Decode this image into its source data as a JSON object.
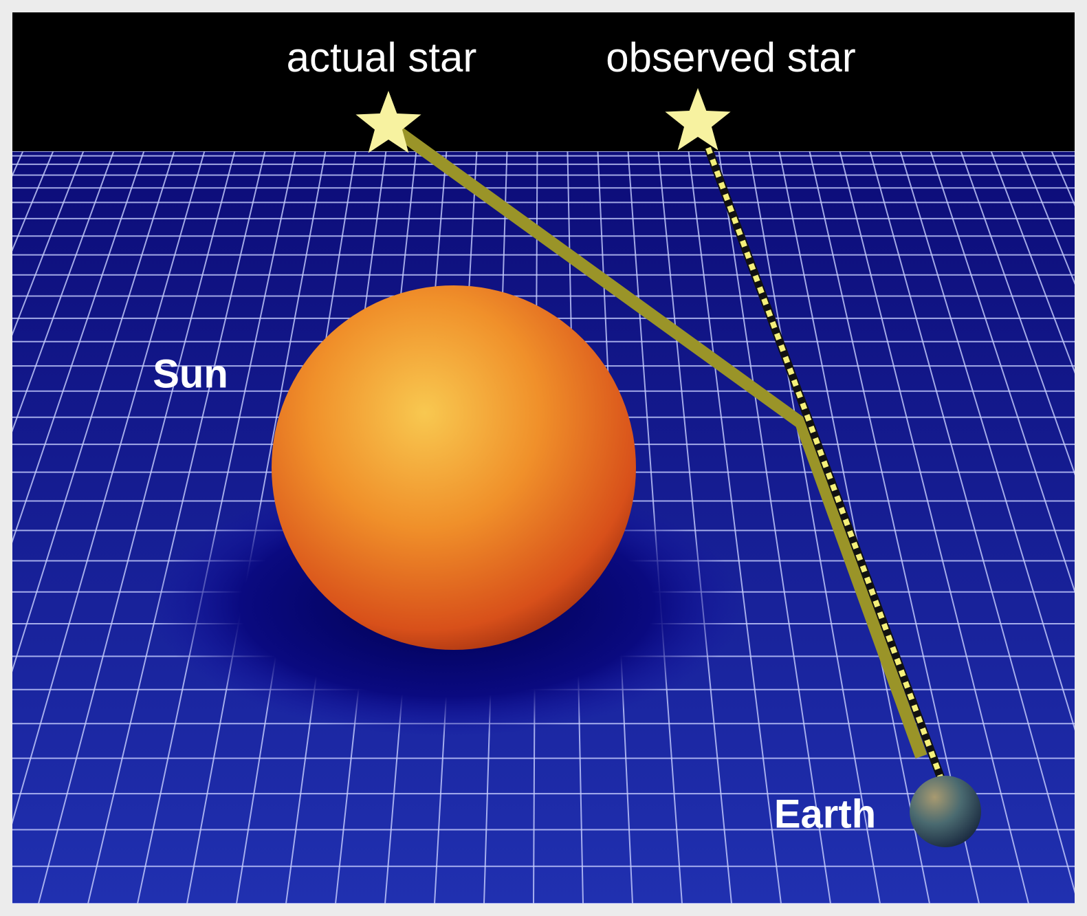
{
  "labels": {
    "actual_star": "actual star",
    "observed_star": "observed star",
    "sun": "Sun",
    "earth": "Earth"
  }
}
